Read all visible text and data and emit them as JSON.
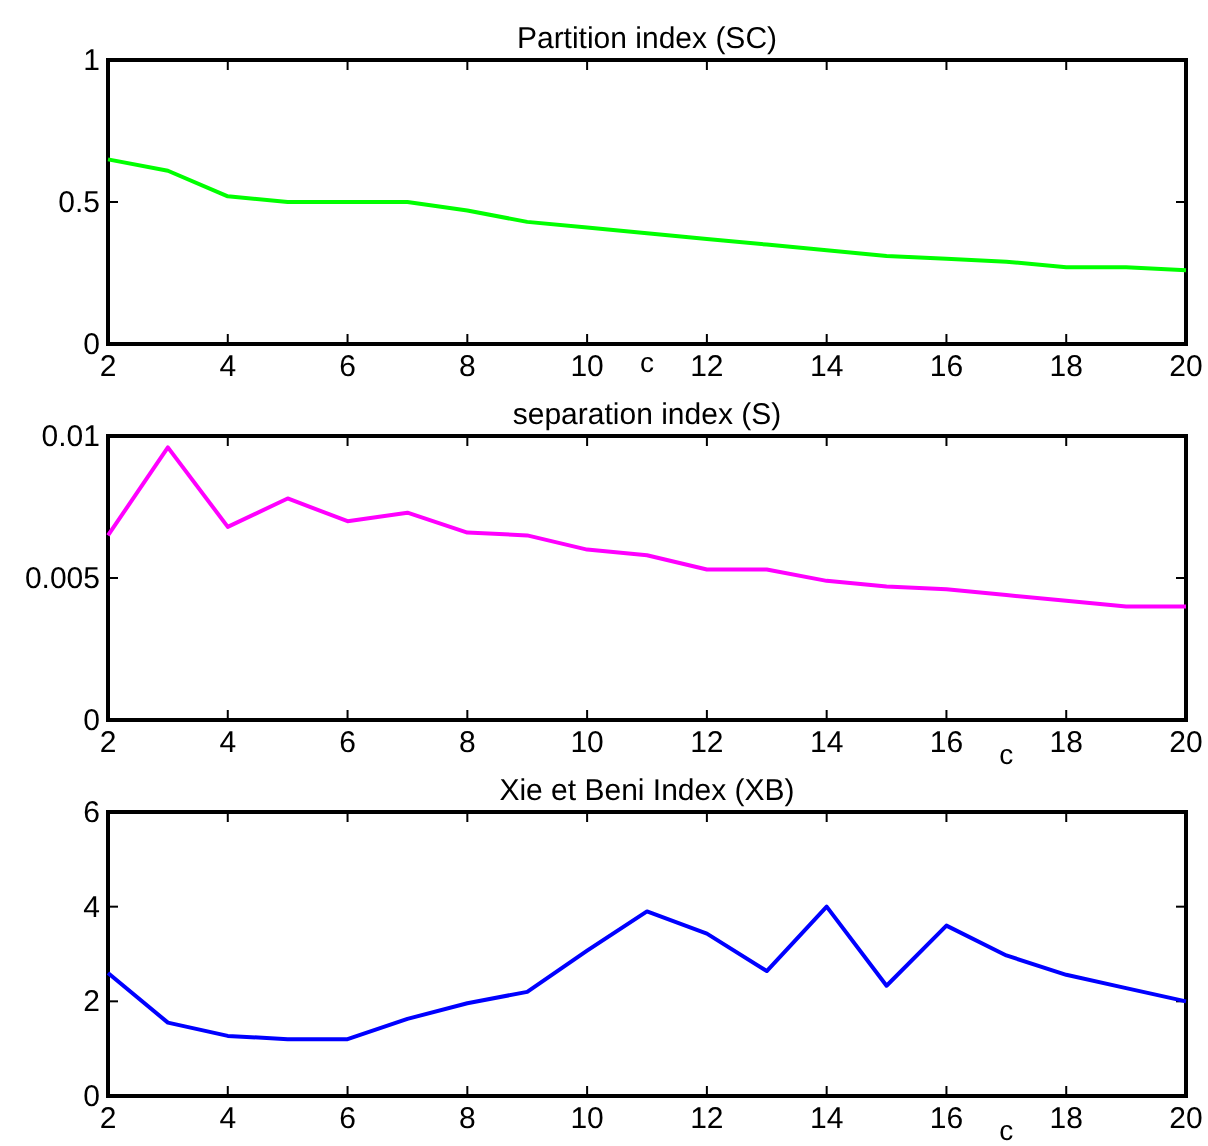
{
  "chart_data": [
    {
      "type": "line",
      "title": "Partition index (SC)",
      "xlabel": "c",
      "x": [
        2,
        3,
        4,
        5,
        6,
        7,
        8,
        9,
        10,
        11,
        12,
        13,
        14,
        15,
        16,
        17,
        18,
        19,
        20
      ],
      "series": [
        {
          "color": "#00ff00",
          "values": [
            0.65,
            0.61,
            0.52,
            0.5,
            0.5,
            0.5,
            0.47,
            0.43,
            0.41,
            0.39,
            0.37,
            0.35,
            0.33,
            0.31,
            0.3,
            0.29,
            0.27,
            0.27,
            0.26
          ]
        }
      ],
      "xlim": [
        2,
        20
      ],
      "xticks": [
        2,
        4,
        6,
        8,
        10,
        12,
        14,
        16,
        18,
        20
      ],
      "ylim": [
        0,
        1
      ],
      "yticks": [
        0,
        0.5,
        1
      ],
      "grid": false
    },
    {
      "type": "line",
      "title": "separation index (S)",
      "xlabel": "c",
      "x": [
        2,
        3,
        4,
        5,
        6,
        7,
        8,
        9,
        10,
        11,
        12,
        13,
        14,
        15,
        16,
        17,
        18,
        19,
        20
      ],
      "series": [
        {
          "color": "#ff00ff",
          "values": [
            0.0065,
            0.0096,
            0.0068,
            0.0078,
            0.007,
            0.0073,
            0.0066,
            0.0065,
            0.006,
            0.0058,
            0.0053,
            0.0053,
            0.0049,
            0.0047,
            0.0046,
            0.0044,
            0.0042,
            0.004,
            0.004
          ]
        }
      ],
      "xlim": [
        2,
        20
      ],
      "xticks": [
        2,
        4,
        6,
        8,
        10,
        12,
        14,
        16,
        18,
        20
      ],
      "ylim": [
        0,
        0.01
      ],
      "yticks": [
        0,
        0.005,
        0.01
      ],
      "grid": false
    },
    {
      "type": "line",
      "title": "Xie et Beni Index (XB)",
      "xlabel": "c",
      "x": [
        2,
        3,
        4,
        5,
        6,
        7,
        8,
        9,
        10,
        11,
        12,
        13,
        14,
        15,
        16,
        17,
        18,
        19,
        20
      ],
      "series": [
        {
          "color": "#0000ff",
          "values": [
            2.6,
            1.55,
            1.27,
            1.2,
            1.2,
            1.63,
            1.96,
            2.2,
            3.07,
            3.9,
            3.43,
            2.64,
            4.0,
            2.33,
            3.6,
            2.97,
            2.56,
            2.28,
            2.0
          ]
        }
      ],
      "xlim": [
        2,
        20
      ],
      "xticks": [
        2,
        4,
        6,
        8,
        10,
        12,
        14,
        16,
        18,
        20
      ],
      "ylim": [
        0,
        6
      ],
      "yticks": [
        0,
        2,
        4,
        6
      ],
      "grid": false
    }
  ]
}
